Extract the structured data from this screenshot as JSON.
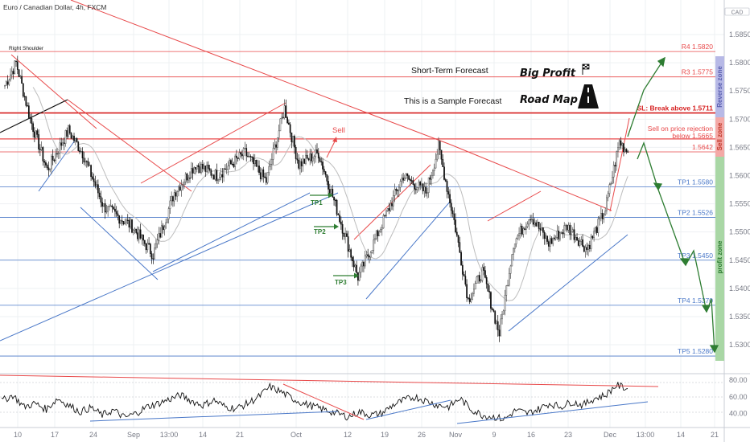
{
  "header": {
    "symbol_title": "Euro / Canadian Dollar, 4h, FXCM",
    "currency_badge": "CAD"
  },
  "colors": {
    "bull": "#4a4a4a",
    "bear": "#111111",
    "red": "#e8494a",
    "blue": "#4a78c8",
    "green": "#2e7d32",
    "grid": "#eef0f3",
    "sell_zone": "#f4a9a6",
    "profit_zone": "#a9d7a5",
    "reverse_zone": "#b7b9e6"
  },
  "annotations": {
    "right_shoulder": "Right Shoulder",
    "forecast_title": "Short-Term Forecast",
    "sample_note": "This is a Sample Forecast",
    "big_profit": "Big Profit",
    "road_map": "Road Map",
    "sell_label": "Sell",
    "tp1": "TP1",
    "tp2": "TP2",
    "tp3": "TP3",
    "zone_reverse": "Reverse zone",
    "zone_sell": "Sell zone",
    "zone_profit": "profit zone"
  },
  "levels": [
    {
      "id": "r4",
      "label": "R4 1.5820",
      "value": 1.582,
      "color": "#e8494a"
    },
    {
      "id": "r3",
      "label": "R3 1.5775",
      "value": 1.5775,
      "color": "#e8494a"
    },
    {
      "id": "sl",
      "label": "SL: Break above 1.5711",
      "value": 1.5711,
      "color": "#d61f1f"
    },
    {
      "id": "sell",
      "label": "Sell on price rejection below 1.5665",
      "value": 1.5665,
      "color": "#e8494a"
    },
    {
      "id": "cur",
      "label": "1.5642",
      "value": 1.5642,
      "color": "#e8494a"
    },
    {
      "id": "tp1",
      "label": "TP1 1.5580",
      "value": 1.558,
      "color": "#4a78c8"
    },
    {
      "id": "tp2",
      "label": "TP2 1.5526",
      "value": 1.5526,
      "color": "#4a78c8"
    },
    {
      "id": "tp3",
      "label": "TP3 1.5450",
      "value": 1.545,
      "color": "#4a78c8"
    },
    {
      "id": "tp4",
      "label": "TP4 1.5370",
      "value": 1.537,
      "color": "#4a78c8"
    },
    {
      "id": "tp5",
      "label": "TP5 1.5280",
      "value": 1.528,
      "color": "#4a78c8"
    }
  ],
  "chart_data": [
    {
      "type": "line",
      "subtype": "candlestick",
      "title": "Euro / Canadian Dollar, 4h, FXCM",
      "xlabel": "",
      "ylabel": "",
      "x_tick_labels": [
        "10",
        "17",
        "24",
        "Sep",
        "13:00",
        "14",
        "21",
        "Oct",
        "12",
        "19",
        "26",
        "Nov",
        "9",
        "16",
        "23",
        "Dec",
        "13:00",
        "14",
        "21"
      ],
      "y_tick_labels": [
        "1.58500",
        "1.58000",
        "1.57500",
        "1.57000",
        "1.56500",
        "1.56000",
        "1.55500",
        "1.55000",
        "1.54500",
        "1.54000",
        "1.53500",
        "1.53000"
      ],
      "ylim": [
        1.5263,
        1.588
      ],
      "x_range_bars": [
        0,
        500
      ],
      "legend": "none",
      "grid": true,
      "close_path_approx": [
        {
          "bar": 0,
          "close": 1.576
        },
        {
          "bar": 8,
          "close": 1.58
        },
        {
          "bar": 18,
          "close": 1.57
        },
        {
          "bar": 30,
          "close": 1.561
        },
        {
          "bar": 45,
          "close": 1.568
        },
        {
          "bar": 55,
          "close": 1.564
        },
        {
          "bar": 70,
          "close": 1.5545
        },
        {
          "bar": 90,
          "close": 1.551
        },
        {
          "bar": 105,
          "close": 1.546
        },
        {
          "bar": 120,
          "close": 1.557
        },
        {
          "bar": 135,
          "close": 1.562
        },
        {
          "bar": 150,
          "close": 1.56
        },
        {
          "bar": 170,
          "close": 1.564
        },
        {
          "bar": 185,
          "close": 1.559
        },
        {
          "bar": 198,
          "close": 1.572
        },
        {
          "bar": 208,
          "close": 1.562
        },
        {
          "bar": 222,
          "close": 1.564
        },
        {
          "bar": 235,
          "close": 1.554
        },
        {
          "bar": 250,
          "close": 1.542
        },
        {
          "bar": 268,
          "close": 1.552
        },
        {
          "bar": 282,
          "close": 1.56
        },
        {
          "bar": 298,
          "close": 1.557
        },
        {
          "bar": 307,
          "close": 1.565
        },
        {
          "bar": 318,
          "close": 1.552
        },
        {
          "bar": 328,
          "close": 1.538
        },
        {
          "bar": 338,
          "close": 1.543
        },
        {
          "bar": 350,
          "close": 1.532
        },
        {
          "bar": 360,
          "close": 1.548
        },
        {
          "bar": 372,
          "close": 1.553
        },
        {
          "bar": 385,
          "close": 1.548
        },
        {
          "bar": 398,
          "close": 1.551
        },
        {
          "bar": 412,
          "close": 1.547
        },
        {
          "bar": 425,
          "close": 1.554
        },
        {
          "bar": 435,
          "close": 1.566
        },
        {
          "bar": 441,
          "close": 1.5642
        }
      ],
      "last_price": 1.5642
    },
    {
      "type": "line",
      "title": "",
      "ylim": [
        25,
        85
      ],
      "y_tick_labels": [
        "80.00",
        "60.00",
        "40.00"
      ],
      "series": [
        {
          "values": [
            55,
            62,
            48,
            52,
            45,
            58,
            50,
            42,
            47,
            38,
            44,
            35,
            40,
            48,
            52,
            57,
            62,
            55,
            50,
            56,
            48,
            46,
            52,
            60,
            72,
            66,
            58,
            52,
            48,
            44,
            40,
            36,
            42,
            38,
            40,
            50,
            56,
            60,
            55,
            50,
            48,
            58,
            45,
            38,
            36,
            33,
            44,
            40,
            45,
            52,
            48,
            54,
            50,
            58,
            62,
            74,
            70
          ]
        }
      ]
    }
  ]
}
